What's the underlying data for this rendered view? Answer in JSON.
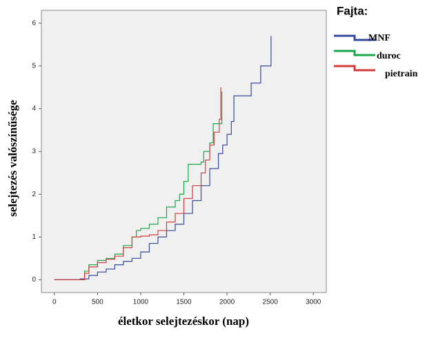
{
  "chart_data": {
    "type": "step",
    "xlabel": "életkor selejtezéskor (nap)",
    "ylabel": "selejtezés valószínűsége",
    "legend_title": "Fajta:",
    "xlim": [
      -150,
      3150
    ],
    "ylim": [
      -0.3,
      6.3
    ],
    "xticks": [
      0,
      500,
      1000,
      1500,
      2000,
      2500,
      3000
    ],
    "yticks": [
      0,
      1,
      2,
      3,
      4,
      5,
      6
    ],
    "grid": false,
    "legend": "right",
    "series": [
      {
        "name": "MNF",
        "color": "#34489c",
        "x": [
          0,
          280,
          300,
          400,
          500,
          600,
          700,
          800,
          900,
          1000,
          1100,
          1200,
          1300,
          1400,
          1500,
          1600,
          1700,
          1800,
          1900,
          1950,
          2000,
          2050,
          2080,
          2280,
          2390,
          2510
        ],
        "values": [
          0,
          0,
          0.02,
          0.1,
          0.18,
          0.25,
          0.35,
          0.43,
          0.5,
          0.65,
          0.85,
          1.0,
          1.15,
          1.3,
          1.55,
          1.85,
          2.2,
          2.6,
          2.95,
          3.15,
          3.4,
          3.7,
          4.3,
          4.6,
          5.0,
          5.7
        ]
      },
      {
        "name": "duroc",
        "color": "#1aa64a",
        "x": [
          0,
          280,
          350,
          400,
          500,
          600,
          700,
          800,
          900,
          950,
          1000,
          1100,
          1200,
          1300,
          1400,
          1450,
          1500,
          1550,
          1700,
          1730,
          1800,
          1840,
          1940
        ],
        "values": [
          0,
          0,
          0.2,
          0.35,
          0.45,
          0.5,
          0.6,
          0.8,
          1.0,
          1.15,
          1.2,
          1.3,
          1.45,
          1.7,
          1.85,
          2.0,
          2.3,
          2.7,
          2.75,
          3.0,
          3.2,
          3.65,
          4.4
        ]
      },
      {
        "name": "pietrain",
        "color": "#d03a3a",
        "x": [
          0,
          300,
          350,
          400,
          500,
          600,
          700,
          800,
          900,
          1000,
          1100,
          1200,
          1300,
          1400,
          1500,
          1600,
          1700,
          1750,
          1800,
          1850,
          1910,
          1928
        ],
        "values": [
          0,
          0,
          0.15,
          0.3,
          0.4,
          0.48,
          0.55,
          0.75,
          1.0,
          1.02,
          1.05,
          1.15,
          1.35,
          1.55,
          1.9,
          2.2,
          2.5,
          2.8,
          3.15,
          3.45,
          3.75,
          4.5
        ]
      }
    ]
  }
}
